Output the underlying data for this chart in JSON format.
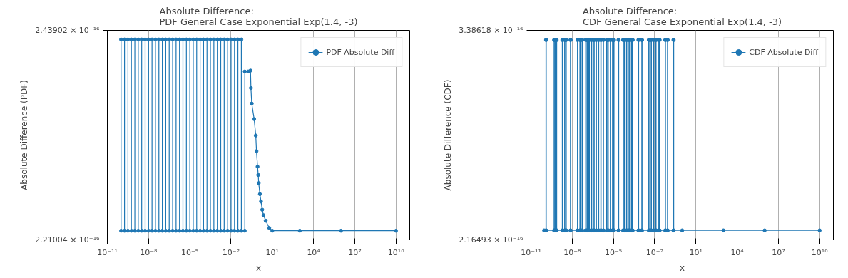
{
  "chart_data": [
    {
      "type": "line",
      "title": "Absolute Difference:\nPDF General Case Exponential Exp(1.4, -3)",
      "xlabel": "x",
      "ylabel": "Absolute Difference (PDF)",
      "log": "x",
      "grid": true,
      "legend": "top right",
      "marker": "circle",
      "line_style": "solid",
      "xlim": [
        1e-11,
        100000000000.0
      ],
      "xticks": [
        {
          "value": 1e-11,
          "label": "10⁻¹¹"
        },
        {
          "value": 1e-08,
          "label": "10⁻⁸"
        },
        {
          "value": 1e-05,
          "label": "10⁻⁵"
        },
        {
          "value": 0.01,
          "label": "10⁻²"
        },
        {
          "value": 10,
          "label": "10¹"
        },
        {
          "value": 10000.0,
          "label": "10⁴"
        },
        {
          "value": 10000000.0,
          "label": "10⁷"
        },
        {
          "value": 10000000000.0,
          "label": "10¹⁰"
        }
      ],
      "ylim": [
        2.21004e-16,
        2.43902e-16
      ],
      "yticks": [
        {
          "value": 2.21004e-16,
          "label": "2.21004 × 10⁻¹⁶"
        },
        {
          "value": 2.43902e-16,
          "label": "2.43902 × 10⁻¹⁶"
        }
      ],
      "series": [
        {
          "name": "PDF Absolute Diff",
          "color": "#1f77b4",
          "x": [
            1e-10,
            1e-10,
            1.78e-10,
            1.78e-10,
            3.16e-10,
            3.16e-10,
            5.62e-10,
            5.62e-10,
            1e-09,
            1e-09,
            1.78e-09,
            1.78e-09,
            3.16e-09,
            3.16e-09,
            5.62e-09,
            5.62e-09,
            1e-08,
            1e-08,
            1.78e-08,
            1.78e-08,
            3.16e-08,
            3.16e-08,
            5.62e-08,
            5.62e-08,
            1e-07,
            1e-07,
            1.78e-07,
            1.78e-07,
            3.16e-07,
            3.16e-07,
            5.62e-07,
            5.62e-07,
            1e-06,
            1e-06,
            1.78e-06,
            1.78e-06,
            3.16e-06,
            3.16e-06,
            5.62e-06,
            5.62e-06,
            1e-05,
            1e-05,
            1.78e-05,
            1.78e-05,
            3.16e-05,
            3.16e-05,
            5.62e-05,
            5.62e-05,
            0.0001,
            0.0001,
            0.000178,
            0.000178,
            0.000316,
            0.000316,
            0.000562,
            0.000562,
            0.001,
            0.001,
            0.00178,
            0.00178,
            0.00316,
            0.00316,
            0.00562,
            0.00562,
            0.01,
            0.01,
            0.0178,
            0.0178,
            0.0316,
            0.0316,
            0.0562,
            0.0562,
            0.1,
            0.1,
            0.178,
            0.26,
            0.28,
            0.32,
            0.48,
            0.63,
            0.71,
            0.85,
            0.95,
            1.03,
            1.26,
            1.51,
            1.86,
            2.29,
            3.31,
            6.03,
            10,
            1000,
            1000000.0,
            10000000000.0
          ],
          "values": [
            2.22e-16,
            2.429e-16,
            2.429e-16,
            2.22e-16,
            2.22e-16,
            2.429e-16,
            2.429e-16,
            2.22e-16,
            2.22e-16,
            2.429e-16,
            2.429e-16,
            2.22e-16,
            2.22e-16,
            2.429e-16,
            2.429e-16,
            2.22e-16,
            2.22e-16,
            2.429e-16,
            2.429e-16,
            2.22e-16,
            2.22e-16,
            2.429e-16,
            2.429e-16,
            2.22e-16,
            2.22e-16,
            2.429e-16,
            2.429e-16,
            2.22e-16,
            2.22e-16,
            2.429e-16,
            2.429e-16,
            2.22e-16,
            2.22e-16,
            2.429e-16,
            2.429e-16,
            2.22e-16,
            2.22e-16,
            2.429e-16,
            2.429e-16,
            2.22e-16,
            2.22e-16,
            2.429e-16,
            2.429e-16,
            2.22e-16,
            2.22e-16,
            2.429e-16,
            2.429e-16,
            2.22e-16,
            2.22e-16,
            2.429e-16,
            2.429e-16,
            2.22e-16,
            2.22e-16,
            2.429e-16,
            2.429e-16,
            2.22e-16,
            2.22e-16,
            2.429e-16,
            2.429e-16,
            2.22e-16,
            2.22e-16,
            2.429e-16,
            2.429e-16,
            2.22e-16,
            2.22e-16,
            2.429e-16,
            2.429e-16,
            2.22e-16,
            2.22e-16,
            2.429e-16,
            2.429e-16,
            2.22e-16,
            2.22e-16,
            2.394e-16,
            2.394e-16,
            2.395e-16,
            2.376e-16,
            2.359e-16,
            2.342e-16,
            2.324e-16,
            2.307e-16,
            2.29e-16,
            2.281e-16,
            2.272e-16,
            2.26e-16,
            2.252e-16,
            2.243e-16,
            2.237e-16,
            2.231e-16,
            2.223e-16,
            2.22e-16,
            2.22e-16,
            2.22e-16,
            2.22e-16
          ]
        }
      ]
    },
    {
      "type": "line",
      "title": "Absolute Difference:\nCDF General Case Exponential Exp(1.4, -3)",
      "xlabel": "x",
      "ylabel": "Absolute Difference (CDF)",
      "log": "x",
      "grid": true,
      "legend": "top right",
      "marker": "circle",
      "line_style": "solid",
      "xlim": [
        1e-11,
        100000000000.0
      ],
      "xticks": [
        {
          "value": 1e-11,
          "label": "10⁻¹¹"
        },
        {
          "value": 1e-08,
          "label": "10⁻⁸"
        },
        {
          "value": 1e-05,
          "label": "10⁻⁵"
        },
        {
          "value": 0.01,
          "label": "10⁻²"
        },
        {
          "value": 10,
          "label": "10¹"
        },
        {
          "value": 10000.0,
          "label": "10⁴"
        },
        {
          "value": 10000000.0,
          "label": "10⁷"
        },
        {
          "value": 10000000000.0,
          "label": "10¹⁰"
        }
      ],
      "ylim": [
        2.16493e-16,
        3.38618e-16
      ],
      "yticks": [
        {
          "value": 2.16493e-16,
          "label": "2.16493 × 10⁻¹⁶"
        },
        {
          "value": 3.38618e-16,
          "label": "3.38618 × 10⁻¹⁶"
        }
      ],
      "series": [
        {
          "name": "CDF Absolute Diff",
          "color": "#1f77b4",
          "x": [
            9e-11,
            1.23e-10,
            1.23e-10,
            1.29e-10,
            1.29e-10,
            4.8e-10,
            4.8e-10,
            5.04e-10,
            5.04e-10,
            5.9e-10,
            5.9e-10,
            6.2e-10,
            6.2e-10,
            7.1e-10,
            7.1e-10,
            7.46e-10,
            7.46e-10,
            1.9e-09,
            1.9e-09,
            2e-09,
            2e-09,
            2.8e-09,
            2.8e-09,
            2.94e-09,
            2.94e-09,
            3.5e-09,
            3.5e-09,
            3.68e-09,
            3.68e-09,
            7.4e-09,
            7.4e-09,
            7.77e-09,
            7.77e-09,
            2.4e-08,
            2.4e-08,
            2.52e-08,
            2.52e-08,
            3.6e-08,
            3.6e-08,
            3.78e-08,
            3.78e-08,
            5.2e-08,
            5.2e-08,
            5.46e-08,
            5.46e-08,
            9.5e-08,
            9.5e-08,
            9.98e-08,
            9.98e-08,
            1.2e-07,
            1.2e-07,
            1.26e-07,
            1.26e-07,
            1.4e-07,
            1.4e-07,
            1.47e-07,
            1.47e-07,
            1.7e-07,
            1.7e-07,
            1.79e-07,
            1.79e-07,
            2.5e-07,
            2.5e-07,
            2.63e-07,
            2.63e-07,
            3.8e-07,
            3.8e-07,
            3.99e-07,
            3.99e-07,
            5.5e-07,
            5.5e-07,
            5.78e-07,
            5.78e-07,
            8.1e-07,
            8.1e-07,
            8.5e-07,
            8.5e-07,
            1.2e-06,
            1.2e-06,
            1.26e-06,
            1.26e-06,
            1.8e-06,
            1.8e-06,
            1.89e-06,
            1.89e-06,
            3.2e-06,
            3.2e-06,
            3.36e-06,
            3.36e-06,
            4e-06,
            4e-06,
            4.2e-06,
            4.2e-06,
            5.9e-06,
            5.9e-06,
            6.2e-06,
            6.2e-06,
            8.5e-06,
            8.5e-06,
            8.93e-06,
            8.93e-06,
            1.05e-05,
            1.05e-05,
            1.1e-05,
            1.1e-05,
            2.3e-05,
            2.3e-05,
            2.42e-05,
            2.42e-05,
            5e-05,
            5e-05,
            5.25e-05,
            5.25e-05,
            6.2e-05,
            6.2e-05,
            6.51e-05,
            6.51e-05,
            8.9e-05,
            8.9e-05,
            9.35e-05,
            9.35e-05,
            0.000135,
            0.000135,
            0.000142,
            0.000142,
            0.0002,
            0.0002,
            0.00021,
            0.00021,
            0.00024,
            0.00024,
            0.000252,
            0.000252,
            0.00065,
            0.00065,
            0.000683,
            0.000683,
            0.00115,
            0.00115,
            0.00121,
            0.00121,
            0.0037,
            0.0037,
            0.00389,
            0.00389,
            0.0055,
            0.0055,
            0.00578,
            0.00578,
            0.0081,
            0.0081,
            0.0085,
            0.0085,
            0.012,
            0.012,
            0.0126,
            0.0126,
            0.018,
            0.018,
            0.0189,
            0.0189,
            0.022,
            0.022,
            0.0231,
            0.0231,
            0.058,
            0.058,
            0.0609,
            0.0609,
            0.085,
            0.085,
            0.0893,
            0.0893,
            0.23,
            0.23,
            0.242,
            0.242,
            1,
            1000,
            1000000.0,
            10000000000.0
          ],
          "values": [
            2.22e-16,
            2.22e-16,
            3.33e-16,
            3.33e-16,
            2.22e-16,
            2.22e-16,
            3.33e-16,
            3.33e-16,
            2.22e-16,
            2.22e-16,
            3.33e-16,
            3.33e-16,
            2.22e-16,
            2.22e-16,
            3.33e-16,
            3.33e-16,
            2.22e-16,
            2.22e-16,
            3.33e-16,
            3.33e-16,
            2.22e-16,
            2.22e-16,
            3.33e-16,
            3.33e-16,
            2.22e-16,
            2.22e-16,
            3.33e-16,
            3.33e-16,
            2.22e-16,
            2.22e-16,
            3.33e-16,
            3.33e-16,
            2.22e-16,
            2.22e-16,
            3.33e-16,
            3.33e-16,
            2.22e-16,
            2.22e-16,
            3.33e-16,
            3.33e-16,
            2.22e-16,
            2.22e-16,
            3.33e-16,
            3.33e-16,
            2.22e-16,
            2.22e-16,
            3.33e-16,
            3.33e-16,
            2.22e-16,
            2.22e-16,
            3.33e-16,
            3.33e-16,
            2.22e-16,
            2.22e-16,
            3.33e-16,
            3.33e-16,
            2.22e-16,
            2.22e-16,
            3.33e-16,
            3.33e-16,
            2.22e-16,
            2.22e-16,
            3.33e-16,
            3.33e-16,
            2.22e-16,
            2.22e-16,
            3.33e-16,
            3.33e-16,
            2.22e-16,
            2.22e-16,
            3.33e-16,
            3.33e-16,
            2.22e-16,
            2.22e-16,
            3.33e-16,
            3.33e-16,
            2.22e-16,
            2.22e-16,
            3.33e-16,
            3.33e-16,
            2.22e-16,
            2.22e-16,
            3.33e-16,
            3.33e-16,
            2.22e-16,
            2.22e-16,
            3.33e-16,
            3.33e-16,
            2.22e-16,
            2.22e-16,
            3.33e-16,
            3.33e-16,
            2.22e-16,
            2.22e-16,
            3.33e-16,
            3.33e-16,
            2.22e-16,
            2.22e-16,
            3.33e-16,
            3.33e-16,
            2.22e-16,
            2.22e-16,
            3.33e-16,
            3.33e-16,
            2.22e-16,
            2.22e-16,
            3.33e-16,
            3.33e-16,
            2.22e-16,
            2.22e-16,
            3.33e-16,
            3.33e-16,
            2.22e-16,
            2.22e-16,
            3.33e-16,
            3.33e-16,
            2.22e-16,
            2.22e-16,
            3.33e-16,
            3.33e-16,
            2.22e-16,
            2.22e-16,
            3.33e-16,
            3.33e-16,
            2.22e-16,
            2.22e-16,
            3.33e-16,
            3.33e-16,
            2.22e-16,
            2.22e-16,
            3.33e-16,
            3.33e-16,
            2.22e-16,
            2.22e-16,
            3.33e-16,
            3.33e-16,
            2.22e-16,
            2.22e-16,
            3.33e-16,
            3.33e-16,
            2.22e-16,
            2.22e-16,
            3.33e-16,
            3.33e-16,
            2.22e-16,
            2.22e-16,
            3.33e-16,
            3.33e-16,
            2.22e-16,
            2.22e-16,
            3.33e-16,
            3.33e-16,
            2.22e-16,
            2.22e-16,
            3.33e-16,
            3.33e-16,
            2.22e-16,
            2.22e-16,
            3.33e-16,
            3.33e-16,
            2.22e-16,
            2.22e-16,
            3.33e-16,
            3.33e-16,
            2.22e-16,
            2.22e-16,
            3.33e-16,
            3.33e-16,
            2.22e-16,
            2.22e-16,
            3.33e-16,
            3.33e-16,
            2.22e-16,
            2.22e-16,
            3.33e-16,
            3.33e-16,
            2.22e-16,
            2.22e-16,
            2.22e-16,
            2.22e-16,
            2.22e-16
          ]
        }
      ]
    }
  ]
}
